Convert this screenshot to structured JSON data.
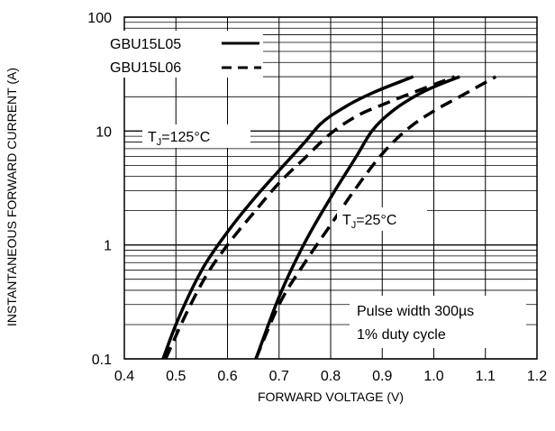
{
  "chart_data": {
    "type": "line",
    "xlabel": "FORWARD VOLTAGE (V)",
    "ylabel": "INSTANTANEOUS FORWARD CURRENT (A)",
    "xlim": [
      0.4,
      1.2
    ],
    "ylim": [
      0.1,
      100
    ],
    "y_scale": "log",
    "x_ticks": [
      "0.4",
      "0.5",
      "0.6",
      "0.7",
      "0.8",
      "0.9",
      "1.0",
      "1.1",
      "1.2"
    ],
    "y_ticks": [
      "0.1",
      "1",
      "10",
      "100"
    ],
    "grid": true,
    "legend": {
      "position": "top-left",
      "entries": [
        {
          "name": "GBU15L05",
          "style": "solid"
        },
        {
          "name": "GBU15L06",
          "style": "dashed"
        }
      ]
    },
    "annotations": {
      "tj_hot_prefix": "T",
      "tj_hot_sub": "J",
      "tj_hot_value": "=125°C",
      "tj_cold_prefix": "T",
      "tj_cold_sub": "J",
      "tj_cold_value": "=25°C",
      "note_line1": "Pulse width 300µs",
      "note_line2": "1% duty cycle"
    },
    "series": [
      {
        "name": "GBU15L05",
        "condition": "TJ=125°C",
        "style": "solid",
        "x": [
          0.475,
          0.5,
          0.55,
          0.6,
          0.65,
          0.7,
          0.75,
          0.78,
          0.83,
          0.88,
          0.96
        ],
        "y": [
          0.1,
          0.2,
          0.6,
          1.3,
          2.5,
          4.5,
          8.0,
          11.5,
          16.5,
          21.5,
          30
        ]
      },
      {
        "name": "GBU15L06",
        "condition": "TJ=125°C",
        "style": "dashed",
        "x": [
          0.48,
          0.52,
          0.56,
          0.6,
          0.65,
          0.7,
          0.75,
          0.8,
          0.85,
          0.9,
          1.04
        ],
        "y": [
          0.1,
          0.25,
          0.55,
          1.0,
          1.9,
          3.5,
          5.8,
          9.5,
          13.5,
          17.0,
          30
        ]
      },
      {
        "name": "GBU15L05",
        "condition": "TJ=25°C",
        "style": "solid",
        "x": [
          0.655,
          0.7,
          0.75,
          0.8,
          0.85,
          0.88,
          0.92,
          0.97,
          1.01,
          1.05
        ],
        "y": [
          0.1,
          0.35,
          1.05,
          2.6,
          6.0,
          10.0,
          15.0,
          21.0,
          25.5,
          30
        ]
      },
      {
        "name": "GBU15L06",
        "condition": "TJ=25°C",
        "style": "dashed",
        "x": [
          0.655,
          0.7,
          0.75,
          0.8,
          0.85,
          0.9,
          0.95,
          1.0,
          1.05,
          1.12
        ],
        "y": [
          0.1,
          0.3,
          0.7,
          1.5,
          3.2,
          6.3,
          10.5,
          15.0,
          20.0,
          30
        ]
      }
    ]
  }
}
